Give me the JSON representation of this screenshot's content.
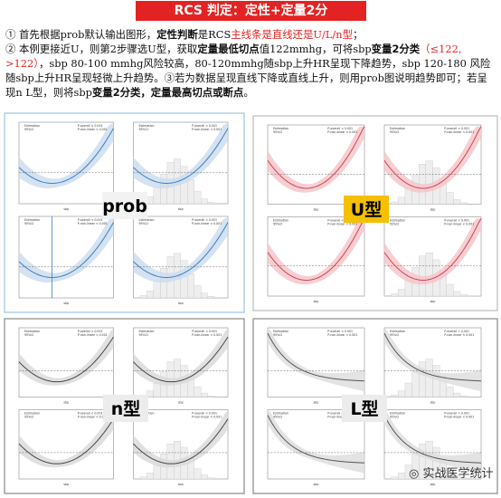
{
  "header": {
    "title_a": "RCS 判定：",
    "title_b": "定性+定量2分"
  },
  "paragraphs": [
    [
      "① 首先根据prob默认输出图形，",
      "定性判断",
      "是RCS",
      "主线条是直线还是U/L/n型",
      "；"
    ],
    [
      "② 本例更接近U，则第2步骤选U型，获取",
      "定量最低切点",
      "值122mmhg，可将sbp",
      "变量2分类",
      "（≤122, >122）",
      "，sbp 80-100 mmhg风险较高，80-120mmhg随sbp上升HR呈现下降趋势，sbp 120-180 风险随sbp上升HR呈现轻微上升趋势。③若为数据呈现直线下降或直线上升，则用prob图说明趋势即可；若呈现n L型，则将sbp",
      "变量2分类，定量最高切点或断点",
      "。"
    ]
  ],
  "panels": [
    {
      "label": "prob"
    },
    {
      "label": "U型"
    },
    {
      "label": "n型"
    },
    {
      "label": "L型"
    }
  ],
  "plot_legend": {
    "estimation": "Estimation",
    "ci": "95%CI",
    "p_overall": "P-overall < 0.001",
    "p_nonlinear": "P-non-linear < 0.001",
    "xlabel": "sbp"
  },
  "watermark": "实战医学统计"
}
